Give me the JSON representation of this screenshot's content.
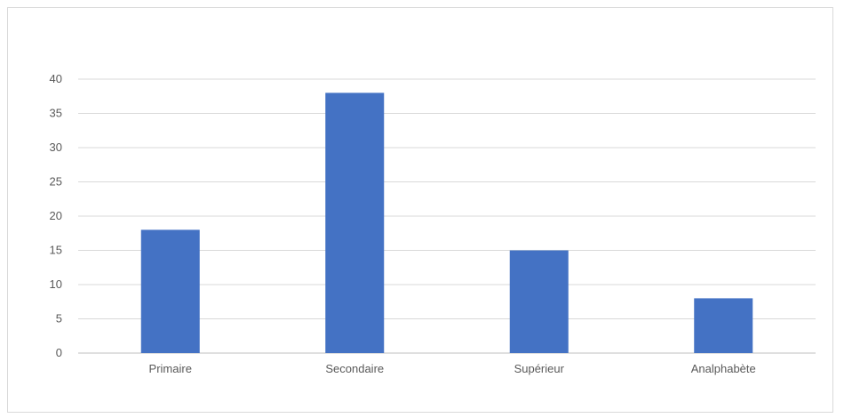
{
  "chart_data": {
    "type": "bar",
    "title": "",
    "xlabel": "",
    "ylabel": "",
    "categories": [
      "Primaire",
      "Secondaire",
      "Supérieur",
      "Analphabète"
    ],
    "values": [
      18,
      38,
      15,
      8
    ],
    "ylim": [
      0,
      40
    ],
    "yticks": [
      "0",
      "5",
      "10",
      "15",
      "20",
      "25",
      "30",
      "35",
      "40"
    ],
    "grid": true,
    "legend": "none",
    "bar_color": "#4472c4",
    "grid_color": "#d9d9d9",
    "axis_color": "#bfbfbf",
    "label_color": "#595959"
  }
}
